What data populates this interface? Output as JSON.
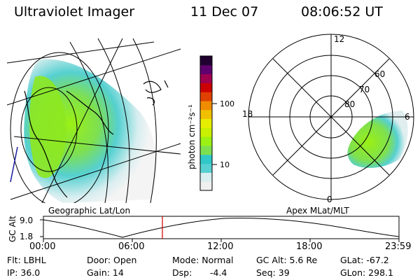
{
  "header": {
    "title": "Ultraviolet Imager",
    "date": "11 Dec 07",
    "time": "08:06:52 UT"
  },
  "colorbar": {
    "label": "photon cm⁻²s⁻¹",
    "ticks": [
      "100",
      "10"
    ],
    "colors": [
      "#f0f0f0",
      "#d8eef0",
      "#56d0d0",
      "#30c8c8",
      "#7ee050",
      "#9bf014",
      "#c8f000",
      "#e6ee00",
      "#f0c000",
      "#f08c00",
      "#e04000",
      "#cc0000",
      "#a00050",
      "#600070",
      "#200030"
    ]
  },
  "geo_panel": {
    "label": "Geographic Lat/Lon"
  },
  "apex_panel": {
    "label": "Apex MLat/MLT",
    "mlt_labels": {
      "top": "12",
      "right": "6",
      "bottom": "0",
      "left": "18"
    },
    "lat_labels": [
      "60",
      "70",
      "80"
    ]
  },
  "altitude_strip": {
    "axis_label": "GC Alt",
    "y_ticks": [
      "9.0",
      "1.8"
    ],
    "x_ticks": [
      "00:00",
      "06:00",
      "12:00",
      "18:00",
      "23:59"
    ],
    "marker_color": "#d00000"
  },
  "info": {
    "row1": {
      "filter": "Flt: LBHL",
      "door": "Door: Open",
      "mode": "Mode: Normal",
      "gc_alt": "GC Alt: 5.6 Re",
      "glat": "GLat: -67.2"
    },
    "row2": {
      "ip": "IP: 36.0",
      "gain": "Gain: 14",
      "dsp_label": "Dsp:",
      "dsp_value": "-4.4",
      "seq": "Seq: 39",
      "glon": "GLon: 298.1"
    }
  }
}
